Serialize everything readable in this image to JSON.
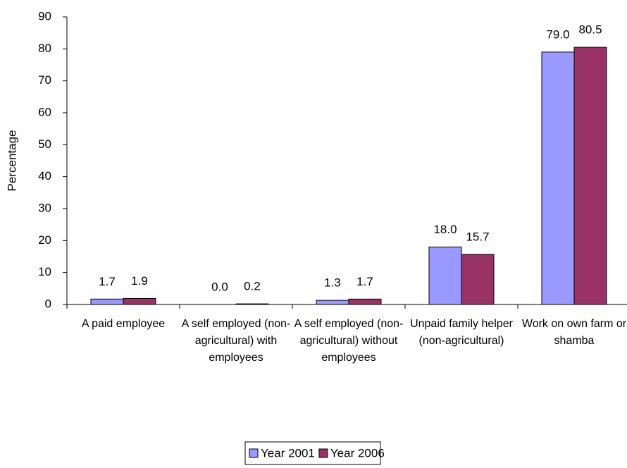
{
  "chart_data": {
    "type": "bar",
    "y_label": "Percentage",
    "categories": [
      "A paid employee",
      "A self employed (non-agricultural) with employees",
      "A self employed (non-agricultural) without employees",
      "Unpaid family helper (non-agricultural)",
      "Work on own farm or shamba"
    ],
    "series": [
      {
        "name": "Year 2001",
        "color": "#9999ff",
        "values": [
          1.7,
          0,
          1.3,
          18,
          79
        ],
        "value_labels": [
          "1.7",
          "0.0",
          "1.3",
          "18.0",
          "79.0"
        ]
      },
      {
        "name": "Year 2006",
        "color": "#993366",
        "values": [
          1.9,
          0.2,
          1.7,
          15.7,
          80.5
        ],
        "value_labels": [
          "1.9",
          "0.2",
          "1.7",
          "15.7",
          "80.5"
        ]
      }
    ],
    "ylim": [
      0,
      90
    ],
    "yticks": [
      0,
      10,
      20,
      30,
      40,
      50,
      60,
      70,
      80,
      90
    ],
    "grid": false,
    "legend": "bottom"
  }
}
